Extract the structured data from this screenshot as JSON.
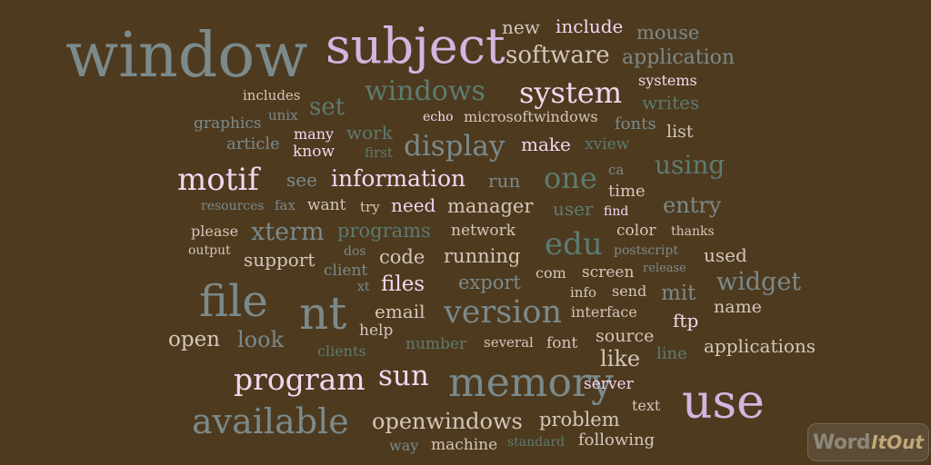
{
  "colors": {
    "background": "#4e3a1f",
    "slate": "#7b8a8b",
    "lilac": "#d3b5e0",
    "teal": "#5c7c70",
    "light": "#d2c7ba",
    "pink": "#f1d8f0"
  },
  "words": [
    "window",
    "subject",
    "new",
    "include",
    "mouse",
    "software",
    "application",
    "systems",
    "windows",
    "system",
    "includes",
    "set",
    "writes",
    "graphics",
    "unix",
    "echo",
    "microsoftwindows",
    "fonts",
    "work",
    "many",
    "list",
    "article",
    "display",
    "know",
    "first",
    "make",
    "xview",
    "using",
    "motif",
    "ca",
    "see",
    "information",
    "run",
    "one",
    "time",
    "resources",
    "fax",
    "want",
    "try",
    "need",
    "manager",
    "user",
    "entry",
    "find",
    "please",
    "xterm",
    "programs",
    "network",
    "color",
    "thanks",
    "output",
    "dos",
    "edu",
    "postscript",
    "support",
    "code",
    "running",
    "used",
    "client",
    "release",
    "com",
    "screen",
    "files",
    "export",
    "widget",
    "file",
    "xt",
    "info",
    "send",
    "mit",
    "nt",
    "email",
    "version",
    "interface",
    "name",
    "help",
    "ftp",
    "open",
    "look",
    "source",
    "number",
    "several",
    "font",
    "clients",
    "applications",
    "like",
    "line",
    "program",
    "sun",
    "memory",
    "server",
    "use",
    "text",
    "available",
    "openwindows",
    "problem",
    "following",
    "way",
    "machine",
    "standard"
  ],
  "logo": {
    "word": "Word",
    "it_out": "ItOut"
  }
}
